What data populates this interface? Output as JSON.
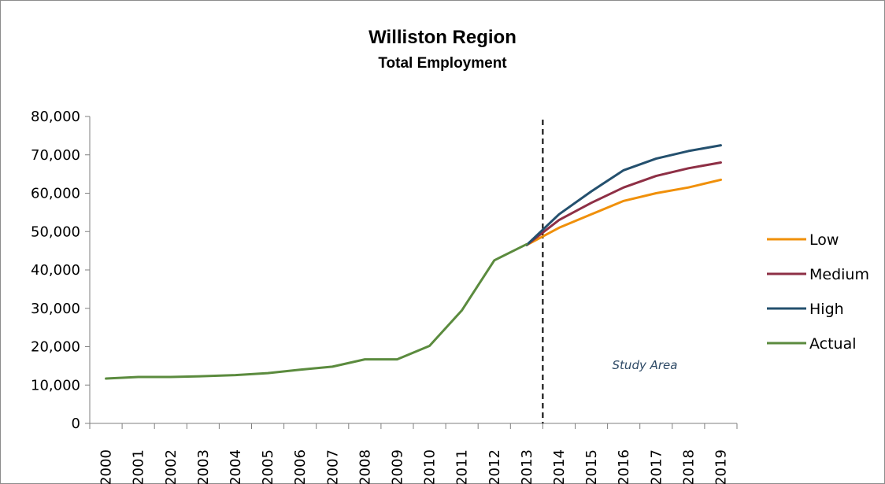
{
  "chart_data": {
    "type": "line",
    "title": "Williston Region",
    "subtitle": "Total Employment",
    "xlabel": "",
    "ylabel": "",
    "categories": [
      "2000",
      "2001",
      "2002",
      "2003",
      "2004",
      "2005",
      "2006",
      "2007",
      "2008",
      "2009",
      "2010",
      "2011",
      "2012",
      "2013",
      "2014",
      "2015",
      "2016",
      "2017",
      "2018",
      "2019"
    ],
    "ylim": [
      0,
      80000
    ],
    "yticks": [
      0,
      10000,
      20000,
      30000,
      40000,
      50000,
      60000,
      70000,
      80000
    ],
    "ytick_labels": [
      "0",
      "10,000",
      "20,000",
      "30,000",
      "40,000",
      "50,000",
      "60,000",
      "70,000",
      "80,000"
    ],
    "grid": false,
    "legend_position": "right",
    "divider_between": [
      "2013",
      "2014"
    ],
    "annotation": "Study Area",
    "annotation_color": "#2e4a66",
    "series": [
      {
        "name": "Low",
        "color": "#f0900a",
        "values": [
          null,
          null,
          null,
          null,
          null,
          null,
          null,
          null,
          null,
          null,
          null,
          null,
          null,
          46500,
          51000,
          54500,
          58000,
          60000,
          61500,
          63500
        ]
      },
      {
        "name": "Medium",
        "color": "#8e2f45",
        "values": [
          null,
          null,
          null,
          null,
          null,
          null,
          null,
          null,
          null,
          null,
          null,
          null,
          null,
          46500,
          53000,
          57500,
          61500,
          64500,
          66500,
          68000
        ]
      },
      {
        "name": "High",
        "color": "#24506e",
        "values": [
          null,
          null,
          null,
          null,
          null,
          null,
          null,
          null,
          null,
          null,
          null,
          null,
          null,
          46500,
          54500,
          60500,
          66000,
          69000,
          71000,
          72500
        ]
      },
      {
        "name": "Actual",
        "color": "#5b8b3e",
        "values": [
          11700,
          12100,
          12100,
          12300,
          12600,
          13100,
          14000,
          14800,
          16700,
          16700,
          20200,
          29500,
          42500,
          46700,
          null,
          null,
          null,
          null,
          null,
          null
        ]
      }
    ]
  }
}
